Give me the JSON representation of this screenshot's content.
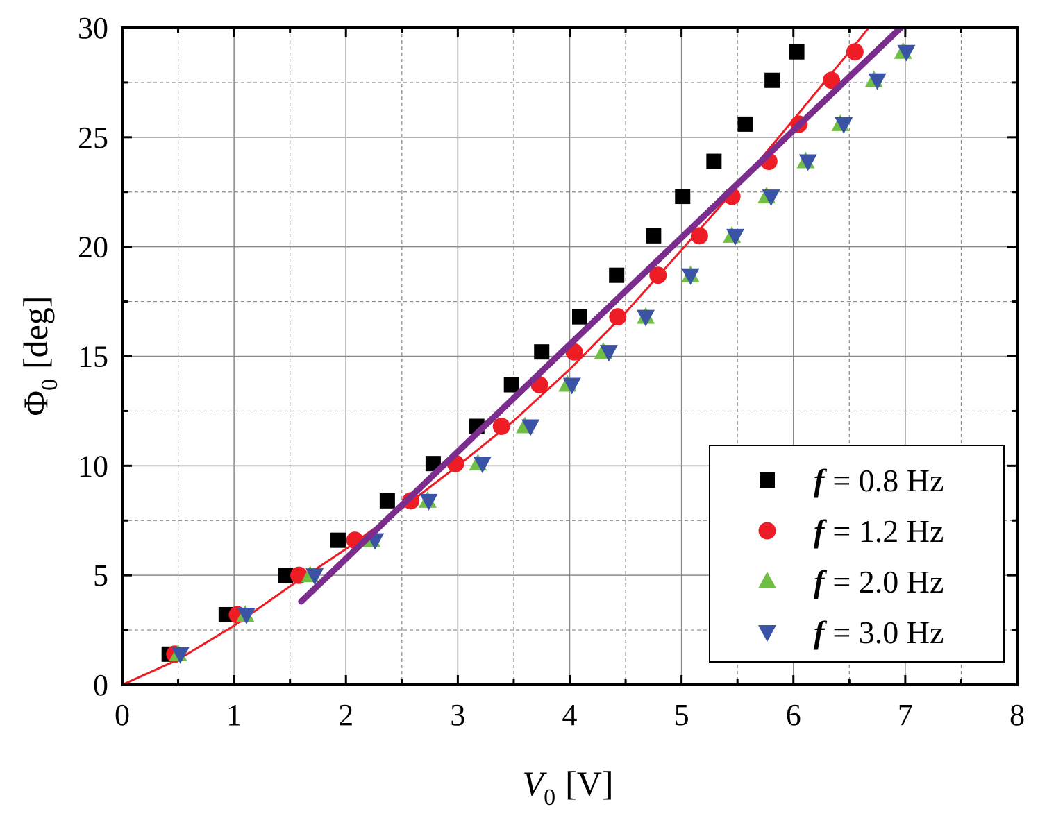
{
  "chart_data": {
    "type": "scatter",
    "title": "",
    "xlabel": {
      "symbol": "V",
      "subscript": "0",
      "unit": "[V]"
    },
    "ylabel": {
      "symbol": "Φ",
      "subscript": "0",
      "unit": "[deg]"
    },
    "xlim": [
      0,
      8
    ],
    "ylim": [
      0,
      30
    ],
    "xticks": [
      0,
      1,
      2,
      3,
      4,
      5,
      6,
      7,
      8
    ],
    "yticks": [
      0,
      5,
      10,
      15,
      20,
      25,
      30
    ],
    "grid": true,
    "legend_position": "bottom-right",
    "series": [
      {
        "name_var": "f",
        "name_value": "= 0.8 Hz",
        "marker": "square",
        "color": "#000000",
        "x": [
          0.42,
          0.93,
          1.46,
          1.93,
          2.37,
          2.78,
          3.17,
          3.48,
          3.75,
          4.09,
          4.42,
          4.75,
          5.01,
          5.29,
          5.57,
          5.81,
          6.03
        ],
        "y": [
          1.4,
          3.2,
          5.0,
          6.6,
          8.4,
          10.1,
          11.8,
          13.7,
          15.2,
          16.8,
          18.7,
          20.5,
          22.3,
          23.9,
          25.6,
          27.6,
          28.9
        ]
      },
      {
        "name_var": "f",
        "name_value": "= 1.2 Hz",
        "marker": "circle",
        "color": "#ee1c25",
        "x": [
          0.47,
          1.03,
          1.58,
          2.08,
          2.58,
          2.98,
          3.39,
          3.73,
          4.04,
          4.43,
          4.79,
          5.16,
          5.45,
          5.78,
          6.05,
          6.34,
          6.55
        ],
        "y": [
          1.4,
          3.2,
          5.0,
          6.6,
          8.4,
          10.1,
          11.8,
          13.7,
          15.2,
          16.8,
          18.7,
          20.5,
          22.3,
          23.9,
          25.6,
          27.6,
          28.9
        ]
      },
      {
        "name_var": "f",
        "name_value": "= 2.0 Hz",
        "marker": "triangle-up",
        "color": "#70bf44",
        "x": [
          0.5,
          1.1,
          1.68,
          2.23,
          2.73,
          3.18,
          3.6,
          3.98,
          4.3,
          4.68,
          5.08,
          5.45,
          5.76,
          6.11,
          6.42,
          6.72,
          6.98
        ],
        "y": [
          1.4,
          3.2,
          5.0,
          6.6,
          8.4,
          10.1,
          11.8,
          13.7,
          15.2,
          16.8,
          18.7,
          20.5,
          22.3,
          23.9,
          25.6,
          27.6,
          28.9
        ]
      },
      {
        "name_var": "f",
        "name_value": "= 3.0 Hz",
        "marker": "triangle-down",
        "color": "#3a53a4",
        "x": [
          0.52,
          1.11,
          1.72,
          2.26,
          2.74,
          3.22,
          3.65,
          4.02,
          4.35,
          4.68,
          5.08,
          5.48,
          5.8,
          6.13,
          6.45,
          6.75,
          7.01
        ],
        "y": [
          1.4,
          3.2,
          5.0,
          6.6,
          8.4,
          10.1,
          11.8,
          13.7,
          15.2,
          16.8,
          18.7,
          20.5,
          22.3,
          23.9,
          25.6,
          27.6,
          28.9
        ]
      }
    ],
    "fit_curve": {
      "color": "#ee1c25",
      "description": "quadratic fit through origin",
      "x": [
        0,
        0.5,
        1.0,
        1.5,
        2.0,
        2.5,
        3.0,
        3.5,
        4.0,
        4.5,
        5.0,
        5.5,
        6.0,
        6.5,
        6.8
      ],
      "y": [
        0,
        1.15,
        2.7,
        4.5,
        6.2,
        8.05,
        10.0,
        12.05,
        14.4,
        17.0,
        19.85,
        22.75,
        25.8,
        28.9,
        30.8
      ]
    },
    "fit_line": {
      "color": "#7b2d8e",
      "description": "linear fit",
      "x": [
        1.6,
        7.0
      ],
      "y": [
        3.8,
        30.2
      ]
    }
  }
}
